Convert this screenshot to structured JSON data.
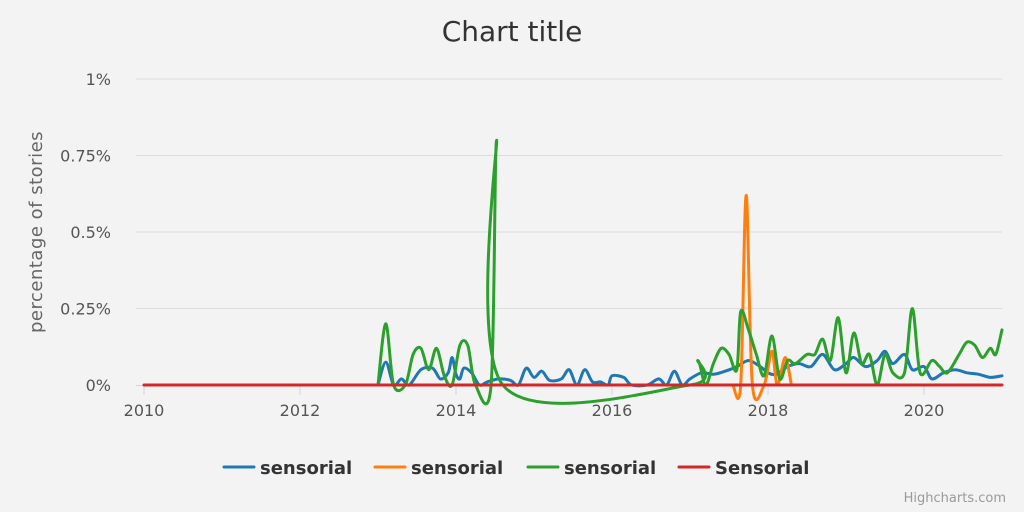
{
  "chart_data": {
    "type": "line",
    "title": "Chart title",
    "xlabel": "",
    "ylabel": "percentage of stories",
    "xlim": [
      2010,
      2021
    ],
    "ylim": [
      0,
      1
    ],
    "y_ticks": [
      0,
      0.25,
      0.5,
      0.75,
      1
    ],
    "y_tick_labels": [
      "0%",
      "0.25%",
      "0.5%",
      "0.75%",
      "1%"
    ],
    "x_ticks": [
      2010,
      2012,
      2014,
      2016,
      2018,
      2020
    ],
    "x_tick_labels": [
      "2010",
      "2012",
      "2014",
      "2016",
      "2018",
      "2020"
    ],
    "grid": "horizontal",
    "legend": "bottom",
    "series": [
      {
        "name": "sensorial",
        "color": "#1f77b4",
        "points": [
          [
            2013.0,
            0
          ],
          [
            2013.1,
            0.075
          ],
          [
            2013.2,
            0
          ],
          [
            2013.3,
            0.02
          ],
          [
            2013.4,
            0
          ],
          [
            2013.55,
            0.05
          ],
          [
            2013.7,
            0.055
          ],
          [
            2013.8,
            0.02
          ],
          [
            2013.9,
            0.04
          ],
          [
            2014.0,
            0.035
          ],
          [
            2013.95,
            0.09
          ],
          [
            2014.05,
            0.02
          ],
          [
            2014.1,
            0.055
          ],
          [
            2014.2,
            0.04
          ],
          [
            2014.3,
            0
          ],
          [
            2014.4,
            0.01
          ],
          [
            2014.55,
            0.02
          ],
          [
            2014.7,
            0.015
          ],
          [
            2014.8,
            0
          ],
          [
            2014.9,
            0.055
          ],
          [
            2015.0,
            0.025
          ],
          [
            2015.1,
            0.045
          ],
          [
            2015.2,
            0.015
          ],
          [
            2015.35,
            0.02
          ],
          [
            2015.45,
            0.05
          ],
          [
            2015.55,
            0
          ],
          [
            2015.65,
            0.05
          ],
          [
            2015.75,
            0.01
          ],
          [
            2015.85,
            0.01
          ],
          [
            2015.95,
            0
          ],
          [
            2016.0,
            0.03
          ],
          [
            2016.15,
            0.025
          ],
          [
            2016.25,
            0
          ],
          [
            2016.45,
            0
          ],
          [
            2016.6,
            0.02
          ],
          [
            2016.7,
            0
          ],
          [
            2016.8,
            0.045
          ],
          [
            2016.9,
            0
          ],
          [
            2017.0,
            0.02
          ],
          [
            2017.15,
            0.04
          ],
          [
            2017.3,
            0.035
          ],
          [
            2017.45,
            0.045
          ],
          [
            2017.6,
            0.06
          ],
          [
            2017.75,
            0.08
          ],
          [
            2017.9,
            0.06
          ],
          [
            2018.0,
            0.04
          ],
          [
            2018.1,
            0.035
          ],
          [
            2018.25,
            0.06
          ],
          [
            2018.4,
            0.07
          ],
          [
            2018.55,
            0.06
          ],
          [
            2018.7,
            0.1
          ],
          [
            2018.85,
            0.05
          ],
          [
            2019.0,
            0.07
          ],
          [
            2019.1,
            0.09
          ],
          [
            2019.25,
            0.06
          ],
          [
            2019.4,
            0.08
          ],
          [
            2019.5,
            0.11
          ],
          [
            2019.6,
            0.07
          ],
          [
            2019.75,
            0.1
          ],
          [
            2019.85,
            0.05
          ],
          [
            2020.0,
            0.06
          ],
          [
            2020.1,
            0.02
          ],
          [
            2020.25,
            0.04
          ],
          [
            2020.4,
            0.05
          ],
          [
            2020.55,
            0.04
          ],
          [
            2020.7,
            0.035
          ],
          [
            2020.85,
            0.025
          ],
          [
            2021.0,
            0.03
          ]
        ]
      },
      {
        "name": "sensorial",
        "color": "#ff7f0e",
        "points": [
          [
            2017.55,
            0
          ],
          [
            2017.65,
            0
          ],
          [
            2017.72,
            0.62
          ],
          [
            2017.8,
            0
          ],
          [
            2017.95,
            0
          ],
          [
            2018.05,
            0.11
          ],
          [
            2018.12,
            0
          ],
          [
            2018.22,
            0.09
          ],
          [
            2018.3,
            0
          ]
        ]
      },
      {
        "name": "sensorial",
        "color": "#2ca02c",
        "points": [
          [
            2013.0,
            0
          ],
          [
            2013.1,
            0.2
          ],
          [
            2013.2,
            0
          ],
          [
            2013.35,
            0
          ],
          [
            2013.45,
            0.1
          ],
          [
            2013.55,
            0.12
          ],
          [
            2013.65,
            0.05
          ],
          [
            2013.75,
            0.12
          ],
          [
            2013.85,
            0.03
          ],
          [
            2013.95,
            0
          ],
          [
            2014.05,
            0.13
          ],
          [
            2014.15,
            0.13
          ],
          [
            2014.25,
            0
          ],
          [
            2014.45,
            0
          ],
          [
            2014.52,
            0.8
          ],
          [
            2014.6,
            0
          ],
          [
            2017.0,
            0
          ],
          [
            2017.1,
            0.08
          ],
          [
            2017.2,
            0
          ],
          [
            2017.3,
            0.07
          ],
          [
            2017.4,
            0.12
          ],
          [
            2017.5,
            0.1
          ],
          [
            2017.6,
            0.05
          ],
          [
            2017.65,
            0.24
          ],
          [
            2017.75,
            0.18
          ],
          [
            2017.85,
            0.1
          ],
          [
            2017.95,
            0.03
          ],
          [
            2018.05,
            0.16
          ],
          [
            2018.15,
            0.02
          ],
          [
            2018.25,
            0.08
          ],
          [
            2018.35,
            0.07
          ],
          [
            2018.5,
            0.1
          ],
          [
            2018.6,
            0.1
          ],
          [
            2018.7,
            0.15
          ],
          [
            2018.8,
            0.08
          ],
          [
            2018.9,
            0.22
          ],
          [
            2019.0,
            0.04
          ],
          [
            2019.1,
            0.17
          ],
          [
            2019.2,
            0.07
          ],
          [
            2019.3,
            0.1
          ],
          [
            2019.4,
            0
          ],
          [
            2019.5,
            0.1
          ],
          [
            2019.6,
            0.04
          ],
          [
            2019.75,
            0.04
          ],
          [
            2019.85,
            0.25
          ],
          [
            2019.95,
            0.04
          ],
          [
            2020.1,
            0.08
          ],
          [
            2020.2,
            0.06
          ],
          [
            2020.3,
            0.04
          ],
          [
            2020.45,
            0.1
          ],
          [
            2020.55,
            0.14
          ],
          [
            2020.65,
            0.13
          ],
          [
            2020.75,
            0.09
          ],
          [
            2020.85,
            0.12
          ],
          [
            2020.92,
            0.1
          ],
          [
            2021.0,
            0.18
          ]
        ]
      },
      {
        "name": "Sensorial",
        "color": "#d62728",
        "points": [
          [
            2010,
            0
          ],
          [
            2021,
            0
          ]
        ]
      }
    ]
  },
  "credits": "Highcharts.com"
}
